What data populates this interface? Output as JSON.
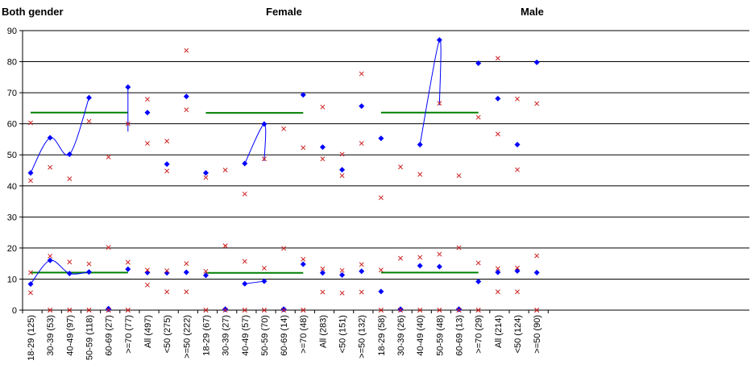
{
  "chart_data": {
    "type": "scatter",
    "panel_titles": [
      "Both gender",
      "Female",
      "Male"
    ],
    "ylim": [
      0,
      90
    ],
    "y_ticks": [
      0,
      10,
      20,
      30,
      40,
      50,
      60,
      70,
      80,
      90
    ],
    "categories": [
      "18-29 (125)",
      "30-39 (53)",
      "40-49 (97)",
      "50-59 (118)",
      "60-69 (27)",
      ">=70 (77)",
      "All (497)",
      "<50 (275)",
      ">=50 (222)",
      "18-29 (67)",
      "30-39 (27)",
      "40-49 (57)",
      "50-59 (70)",
      "60-69 (14)",
      ">=70 (48)",
      "All (283)",
      "<50 (151)",
      ">=50 (132)",
      "18-29 (58)",
      "30-39 (26)",
      "40-49 (40)",
      "50-59 (48)",
      "60-69 (13)",
      ">=70 (29)",
      "All (214)",
      "<50 (124)",
      ">=50 (90)"
    ],
    "series": [
      {
        "key": "upper_estimate",
        "color": "#0000ff",
        "values": [
          44.2,
          55.5,
          50.2,
          68.4,
          0.5,
          71.8,
          63.6,
          47.0,
          68.8,
          44.2,
          0.3,
          47.2,
          59.9,
          0.3,
          69.3,
          52.5,
          45.2,
          65.7,
          55.3,
          0.3,
          53.3,
          87.0,
          0.3,
          79.5,
          68.1,
          53.3,
          79.8
        ]
      },
      {
        "key": "upper_ci_high",
        "color": "#cc2222",
        "values": [
          60.3,
          46.0,
          42.3,
          60.8,
          49.3,
          60.0,
          67.9,
          54.4,
          83.6,
          42.7,
          45.1,
          37.4,
          48.7,
          58.4,
          52.3,
          65.4,
          50.2,
          76.1,
          36.2,
          46.1,
          43.7,
          66.6,
          43.3,
          62.1,
          81.1,
          68.0,
          66.5
        ]
      },
      {
        "key": "upper_ci_low",
        "color": "#cc2222",
        "values": [
          41.7,
          0,
          0,
          0,
          0,
          0,
          53.7,
          44.8,
          64.5,
          0,
          20.7,
          0,
          0,
          0,
          0,
          48.7,
          43.3,
          53.7,
          0,
          0,
          0,
          0,
          0,
          0,
          56.7,
          45.2,
          0
        ]
      },
      {
        "key": "lower_estimate",
        "color": "#0000ff",
        "values": [
          8.4,
          16.0,
          11.8,
          12.3,
          0.3,
          13.2,
          12.1,
          12.0,
          12.2,
          11.2,
          0.3,
          8.5,
          9.3,
          0.3,
          14.8,
          12.0,
          11.3,
          12.5,
          6.0,
          0.3,
          14.3,
          14.0,
          0.3,
          9.2,
          12.2,
          12.6,
          12.1
        ]
      },
      {
        "key": "lower_ci_high",
        "color": "#cc2222",
        "values": [
          12.1,
          17.4,
          15.5,
          14.9,
          20.2,
          15.4,
          12.9,
          12.7,
          15.0,
          12.5,
          20.7,
          15.7,
          13.5,
          19.9,
          16.4,
          13.3,
          12.8,
          14.7,
          12.9,
          16.7,
          17.0,
          18.0,
          20.1,
          15.2,
          13.4,
          13.6,
          17.5
        ]
      },
      {
        "key": "lower_ci_low",
        "color": "#cc2222",
        "values": [
          5.6,
          0,
          0,
          0,
          0,
          0,
          8.1,
          5.9,
          5.9,
          0,
          0,
          0,
          0,
          0,
          0,
          5.8,
          5.5,
          5.8,
          0,
          0,
          0,
          0,
          0,
          0,
          5.9,
          5.9,
          0
        ]
      }
    ],
    "curves": {
      "color": "#0000ff",
      "segments": [
        [
          [
            0,
            44.2
          ],
          [
            1,
            55.5
          ],
          [
            2,
            50.2
          ],
          [
            3,
            68.4
          ]
        ],
        [
          [
            5,
            71.8
          ],
          [
            5,
            57.5
          ]
        ],
        [
          [
            0,
            8.4
          ],
          [
            1,
            16.0
          ],
          [
            2,
            11.8
          ],
          [
            3,
            12.3
          ]
        ],
        [
          [
            11,
            47.2
          ],
          [
            12,
            59.9
          ],
          [
            12,
            48.0
          ]
        ],
        [
          [
            11,
            8.5
          ],
          [
            12,
            9.3
          ]
        ],
        [
          [
            20,
            53.3
          ],
          [
            21,
            87.0
          ],
          [
            21,
            66.0
          ]
        ]
      ]
    },
    "reference_lines": {
      "color": "#008000",
      "segments": [
        {
          "from": 0,
          "to": 5,
          "value": 63.6
        },
        {
          "from": 0,
          "to": 5,
          "value": 12.1
        },
        {
          "from": 9,
          "to": 14,
          "value": 63.5
        },
        {
          "from": 9,
          "to": 14,
          "value": 12.0
        },
        {
          "from": 18,
          "to": 23,
          "value": 63.6
        },
        {
          "from": 18,
          "to": 23,
          "value": 12.1
        }
      ]
    },
    "grid": true,
    "legend": "none"
  }
}
